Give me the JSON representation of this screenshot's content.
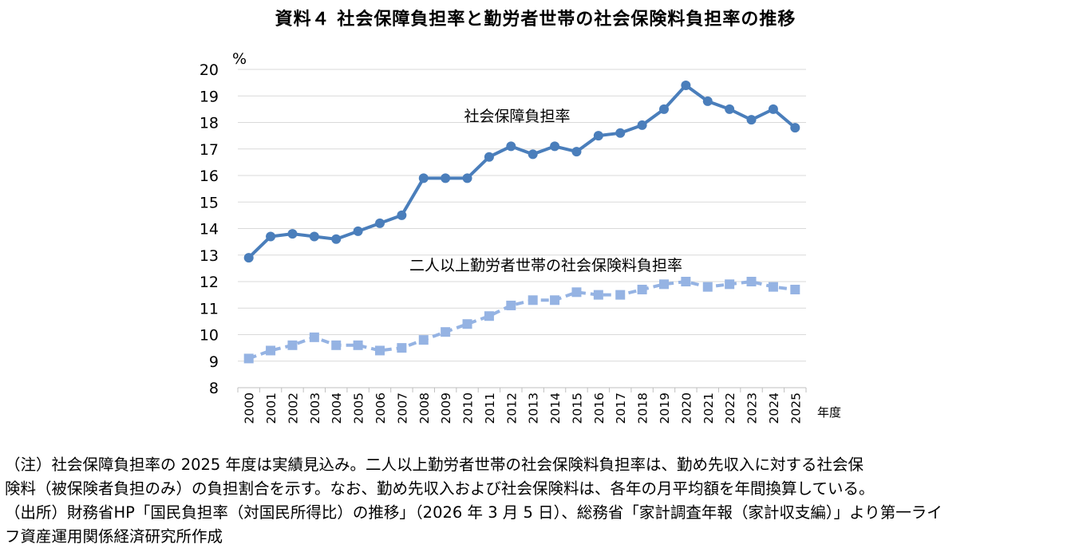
{
  "title": "資料４ 社会保障負担率と勤労者世帯の社会保険料負担率の推移",
  "chart_data": {
    "type": "line",
    "categories": [
      "2000",
      "2001",
      "2002",
      "2003",
      "2004",
      "2005",
      "2006",
      "2007",
      "2008",
      "2009",
      "2010",
      "2011",
      "2012",
      "2013",
      "2014",
      "2015",
      "2016",
      "2017",
      "2018",
      "2019",
      "2020",
      "2021",
      "2022",
      "2023",
      "2024",
      "2025"
    ],
    "series": [
      {
        "name": "社会保障負担率",
        "color": "#4A7EBB",
        "marker": "circle",
        "values": [
          12.9,
          13.7,
          13.8,
          13.7,
          13.6,
          13.9,
          14.2,
          14.5,
          15.9,
          15.9,
          15.9,
          16.7,
          17.1,
          16.8,
          17.1,
          16.9,
          17.5,
          17.6,
          17.9,
          18.5,
          19.4,
          18.8,
          18.5,
          18.1,
          18.5,
          17.8
        ]
      },
      {
        "name": "二人以上勤労者世帯の社会保険料負担率",
        "color": "#95B3E3",
        "marker": "square",
        "dashed": true,
        "values": [
          9.1,
          9.4,
          9.6,
          9.9,
          9.6,
          9.6,
          9.4,
          9.5,
          9.8,
          10.1,
          10.4,
          10.7,
          11.1,
          11.3,
          11.3,
          11.6,
          11.5,
          11.5,
          11.7,
          11.9,
          12.0,
          11.8,
          11.9,
          12.0,
          11.8,
          11.7
        ]
      }
    ],
    "ylim": [
      8,
      20
    ],
    "yticks": [
      "8",
      "9",
      "10",
      "11",
      "12",
      "13",
      "14",
      "15",
      "16",
      "17",
      "18",
      "19",
      "20"
    ],
    "yunit": "%",
    "xunit": "年度",
    "grid": true
  },
  "notes": [
    "（注）社会保障負担率の 2025 年度は実績見込み。二人以上勤労者世帯の社会保険料負担率は、勤め先収入に対する社会保",
    "険料（被保険者負担のみ）の負担割合を示す。なお、勤め先収入および社会保険料は、各年の月平均額を年間換算している。",
    "（出所）財務省HP「国民負担率（対国民所得比）の推移」（2026 年 3 月 5 日）、総務省「家計調査年報（家計収支編）」より第一ライ",
    "フ資産運用関係経済研究所作成"
  ]
}
